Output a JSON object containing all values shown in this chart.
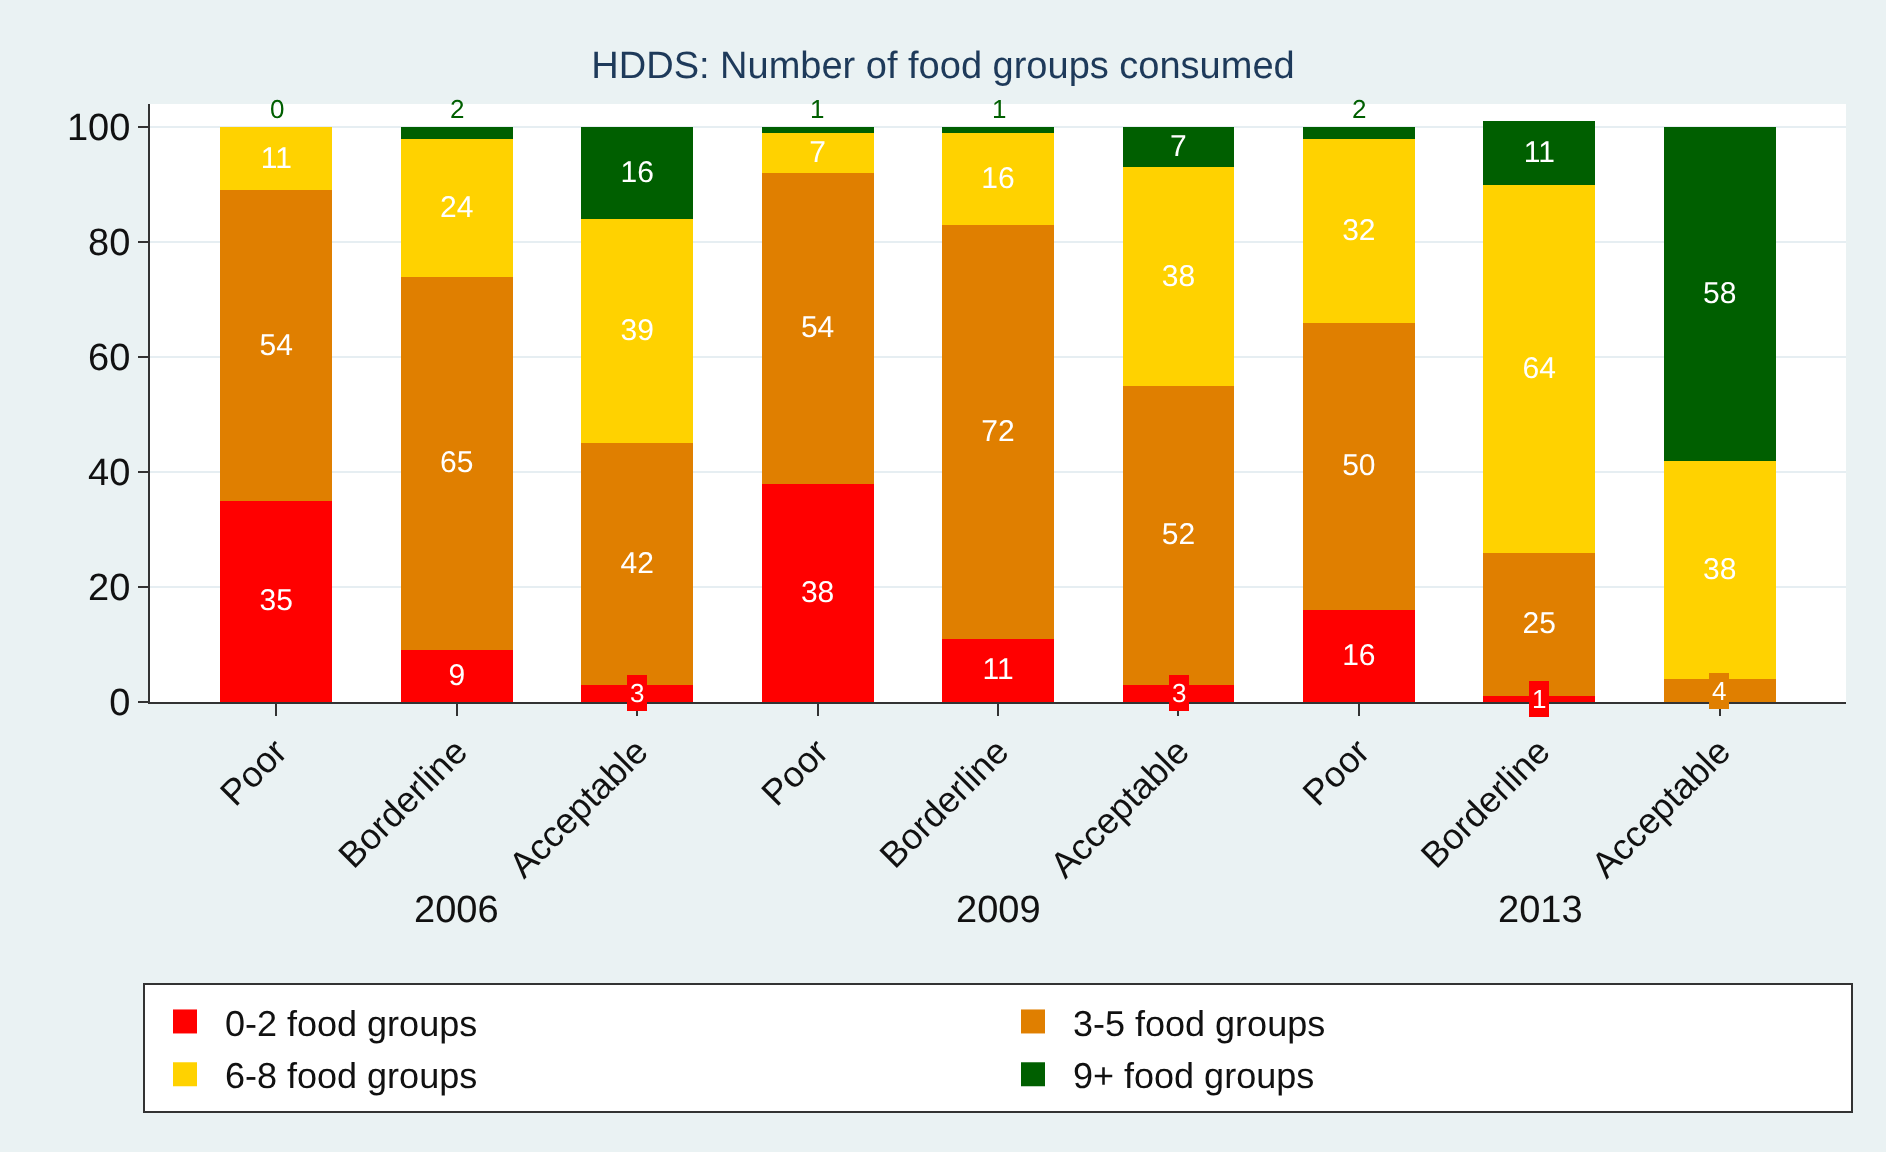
{
  "chart_data": {
    "type": "bar",
    "stacked": true,
    "title": "HDDS: Number of food groups consumed",
    "categories": [
      "Poor",
      "Borderline",
      "Acceptable",
      "Poor",
      "Borderline",
      "Acceptable",
      "Poor",
      "Borderline",
      "Acceptable"
    ],
    "series": [
      {
        "name": "0-2 food groups",
        "color": "#ff0000",
        "values": [
          35,
          9,
          3,
          38,
          11,
          3,
          16,
          1,
          0
        ],
        "value_labels": [
          "35",
          "9",
          "3",
          "38",
          "11",
          "3",
          "16",
          "1",
          null
        ]
      },
      {
        "name": "3-5 food groups",
        "color": "#e07f00",
        "values": [
          54,
          65,
          42,
          54,
          72,
          52,
          50,
          25,
          4
        ],
        "value_labels": [
          "54",
          "65",
          "42",
          "54",
          "72",
          "52",
          "50",
          "25",
          "4"
        ]
      },
      {
        "name": "6-8 food groups",
        "color": "#ffd200",
        "values": [
          11,
          24,
          39,
          7,
          16,
          38,
          32,
          64,
          38
        ],
        "value_labels": [
          "11",
          "24",
          "39",
          "7",
          "16",
          "38",
          "32",
          "64",
          "38"
        ]
      },
      {
        "name": "9+ food groups",
        "color": "#005f00",
        "values": [
          0,
          2,
          16,
          1,
          1,
          7,
          2,
          11,
          58
        ],
        "value_labels": [
          "0",
          "2",
          "16",
          "1",
          "1",
          "7",
          "2",
          "11",
          "58"
        ]
      }
    ],
    "annotations": [
      "2006",
      "2009",
      "2013"
    ],
    "ylim": [
      0,
      104
    ],
    "yticks": [
      0,
      20,
      40,
      60,
      80,
      100
    ],
    "grid": "y",
    "legend": "bottom"
  }
}
